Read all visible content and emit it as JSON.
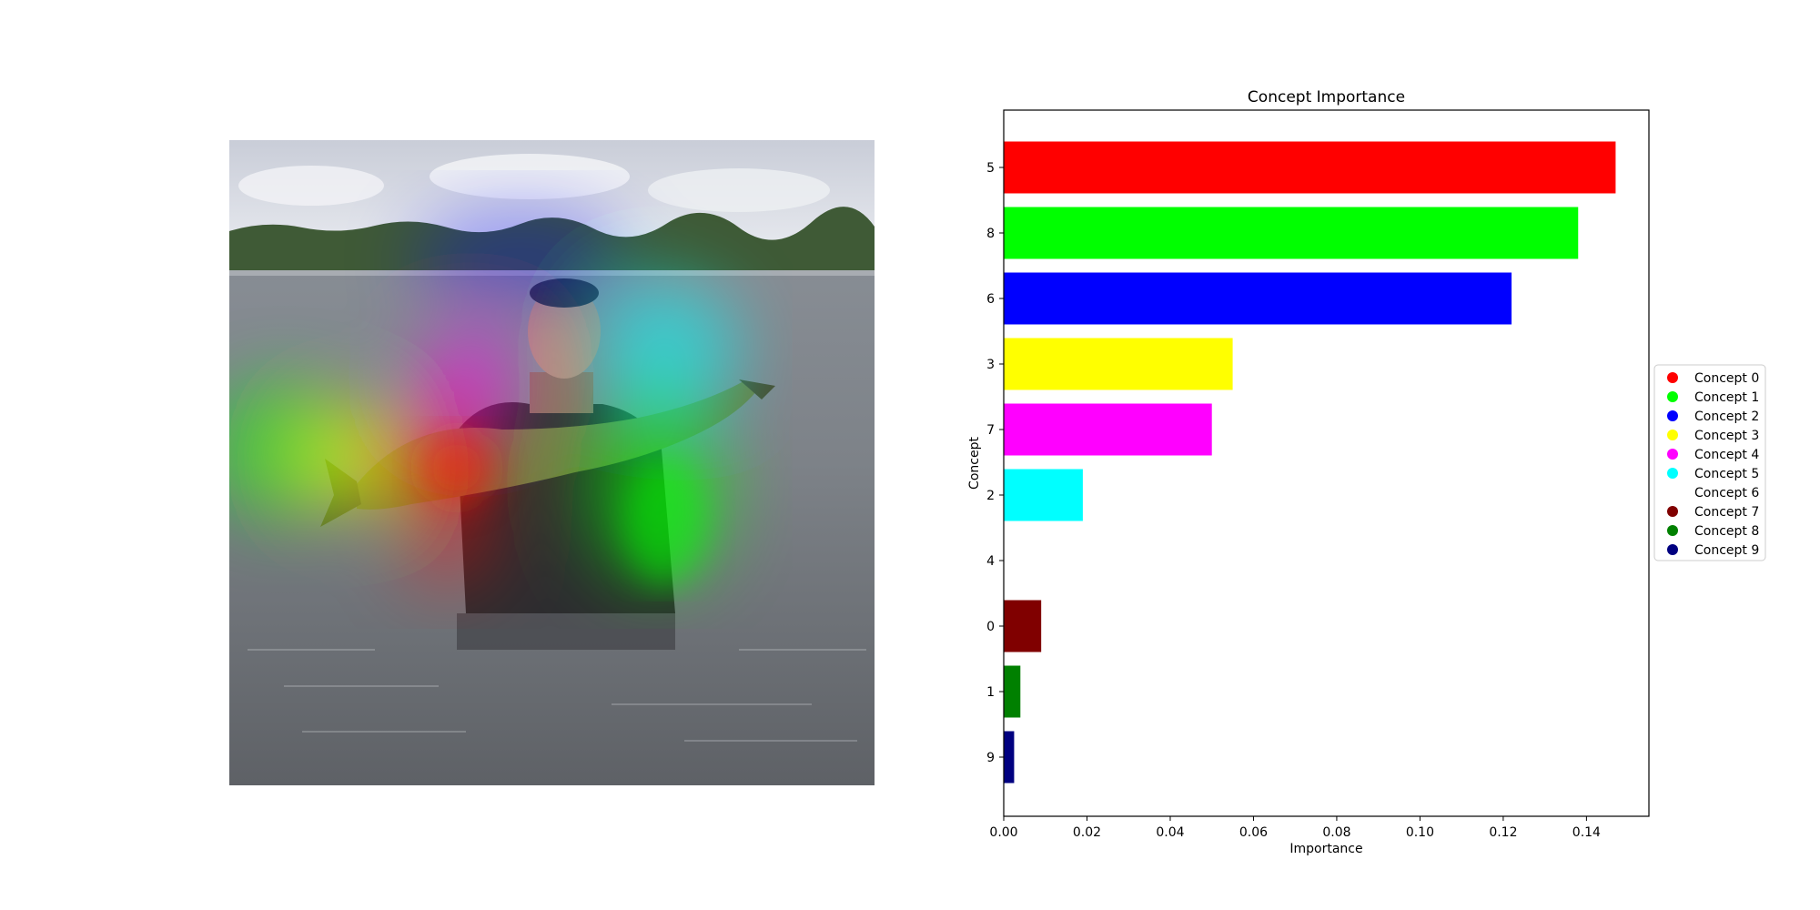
{
  "image_panel": {
    "label": "heatmap-overlay-photo",
    "overlay_colors": [
      "#ff0000",
      "#00ff00",
      "#0000ff",
      "#ffff00",
      "#ff00ff",
      "#00ffff"
    ]
  },
  "chart_data": {
    "type": "bar",
    "orientation": "horizontal",
    "title": "Concept Importance",
    "xlabel": "Importance",
    "ylabel": "Concept",
    "xlim": [
      0,
      0.155
    ],
    "xticks": [
      0.0,
      0.02,
      0.04,
      0.06,
      0.08,
      0.1,
      0.12,
      0.14
    ],
    "xtick_labels": [
      "0.00",
      "0.02",
      "0.04",
      "0.06",
      "0.08",
      "0.10",
      "0.12",
      "0.14"
    ],
    "categories": [
      "5",
      "8",
      "6",
      "3",
      "7",
      "2",
      "4",
      "0",
      "1",
      "9"
    ],
    "values": [
      0.147,
      0.138,
      0.122,
      0.055,
      0.05,
      0.019,
      0.0,
      0.009,
      0.004,
      0.0025
    ],
    "colors": [
      "#ff0000",
      "#00ff00",
      "#0000ff",
      "#ffff00",
      "#ff00ff",
      "#00ffff",
      "#ffffff",
      "#800000",
      "#008000",
      "#000080"
    ],
    "grid": false,
    "legend": {
      "placement": "center-right",
      "entries": [
        {
          "label": "Concept 0",
          "color": "#ff0000"
        },
        {
          "label": "Concept 1",
          "color": "#00ff00"
        },
        {
          "label": "Concept 2",
          "color": "#0000ff"
        },
        {
          "label": "Concept 3",
          "color": "#ffff00"
        },
        {
          "label": "Concept 4",
          "color": "#ff00ff"
        },
        {
          "label": "Concept 5",
          "color": "#00ffff"
        },
        {
          "label": "Concept 6",
          "color": "#ffffff"
        },
        {
          "label": "Concept 7",
          "color": "#800000"
        },
        {
          "label": "Concept 8",
          "color": "#008000"
        },
        {
          "label": "Concept 9",
          "color": "#000080"
        }
      ]
    }
  }
}
